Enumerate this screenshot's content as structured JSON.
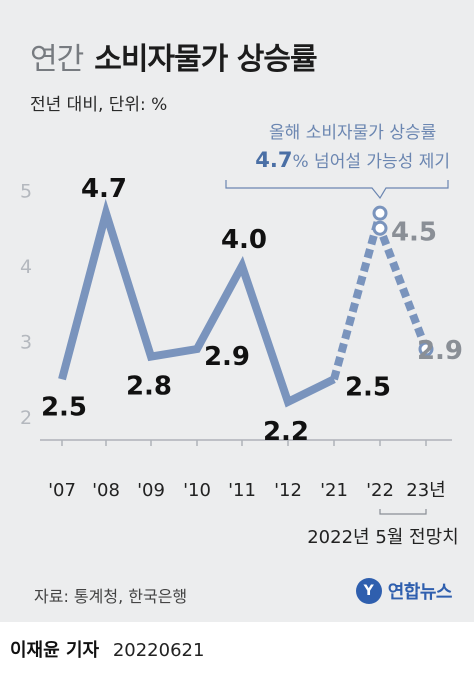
{
  "header": {
    "title_light": "연간",
    "title_bold": "소비자물가 상승률",
    "unit": "전년 대비, 단위: %"
  },
  "callout": {
    "line1": "올해 소비자물가 상승률",
    "value": "4.7",
    "line2_rest": "% 넘어설 가능성 제기"
  },
  "forecast_label": "2022년 5월 전망치",
  "source": "자료: 통계청, 한국은행",
  "logo": {
    "text": "연합뉴스"
  },
  "byline": {
    "name": "이재윤 기자",
    "date": "20220621"
  },
  "colors": {
    "line": "#7a94bd",
    "forecast_label": "#8a8f96",
    "axis": "#aeb2b8",
    "callout": "#6b86b1"
  },
  "chart_data": {
    "type": "line",
    "title": "연간 소비자물가 상승률",
    "ylabel": "전년 대비, 단위: %",
    "categories": [
      "'07",
      "'08",
      "'09",
      "'10",
      "'11",
      "'12",
      "'21",
      "'22",
      "23년"
    ],
    "y_ticks": [
      2,
      3,
      4,
      5
    ],
    "ylim": [
      2,
      5
    ],
    "grid": false,
    "actual": {
      "values": [
        2.5,
        4.7,
        2.8,
        2.9,
        4.0,
        2.2,
        2.5
      ],
      "labels": [
        "2.5",
        "4.7",
        "2.8",
        "2.9",
        "4.0",
        "2.2",
        "2.5"
      ]
    },
    "forecast": {
      "points": [
        {
          "category": "'22",
          "value": 4.7,
          "label": ""
        },
        {
          "category": "'22",
          "value": 4.5,
          "label": "4.5"
        },
        {
          "category": "23년",
          "value": 2.9,
          "label": "2.9"
        }
      ]
    }
  }
}
